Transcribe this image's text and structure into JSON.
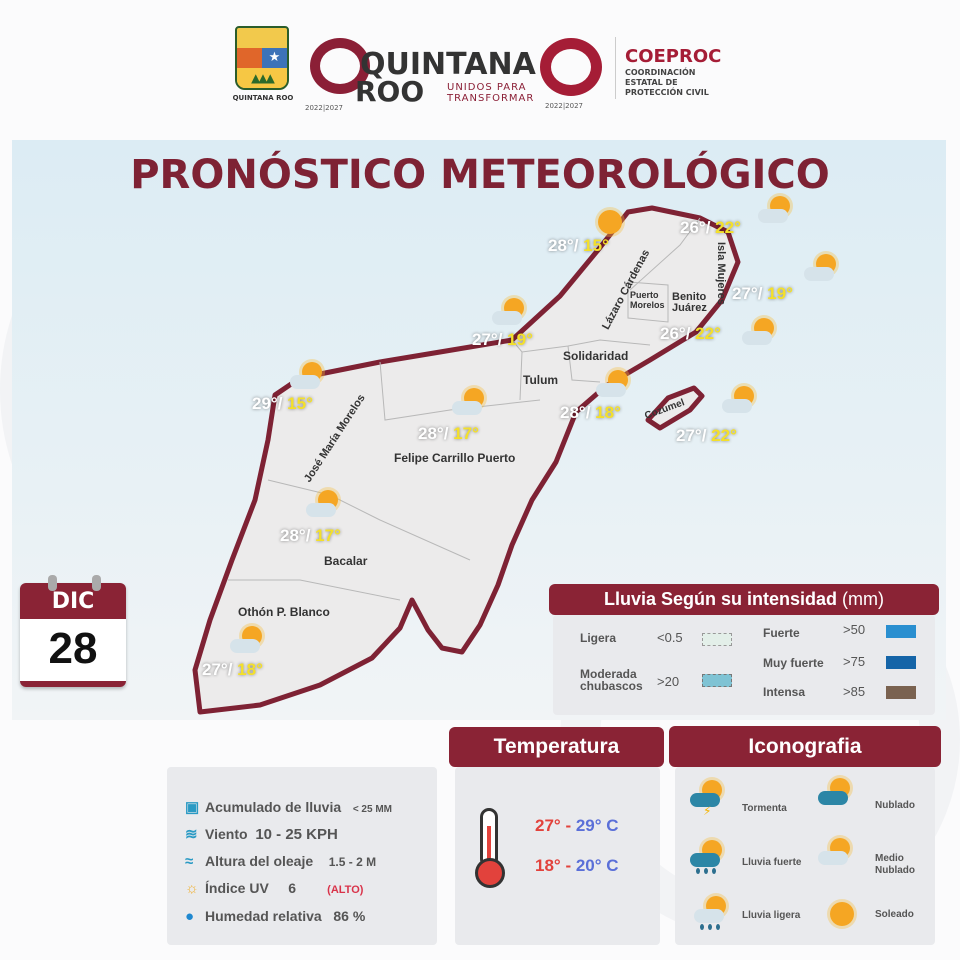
{
  "header": {
    "shield_caption": "QUINTANA ROO",
    "brand_line1": "QUINTANA",
    "brand_line2": "ROO",
    "brand_slogan1": "UNIDOS PARA",
    "brand_slogan2": "TRANSFORMAR",
    "brand_period": "2022|2027",
    "logo2_period": "2022|2027",
    "coeproc": "COEPROC",
    "coeproc_sub": "COORDINACIÓN ESTATAL DE PROTECCIÓN CIVIL"
  },
  "title": "PRONÓSTICO METEOROLÓGICO",
  "date": {
    "month": "DIC",
    "day": "28"
  },
  "map": {
    "municipalities": [
      "Lázaro Cárdenas",
      "Isla Mujeres",
      "Puerto Morelos",
      "Benito Juárez",
      "Solidaridad",
      "Tulum",
      "Cozumel",
      "José María Morelos",
      "Felipe Carrillo Puerto",
      "Bacalar",
      "Othón P. Blanco"
    ],
    "forecasts": [
      {
        "max": "28°/",
        "min": "15°",
        "icon": "soleado"
      },
      {
        "max": "26°/",
        "min": "22°",
        "icon": "medio-nublado"
      },
      {
        "max": "27°/",
        "min": "19°",
        "icon": "medio-nublado"
      },
      {
        "max": "26°/",
        "min": "22°",
        "icon": "medio-nublado"
      },
      {
        "max": "27°/",
        "min": "19°",
        "icon": "medio-nublado"
      },
      {
        "max": "29°/",
        "min": "15°",
        "icon": "medio-nublado"
      },
      {
        "max": "28°/",
        "min": "17°",
        "icon": "medio-nublado"
      },
      {
        "max": "28°/",
        "min": "18°",
        "icon": "medio-nublado"
      },
      {
        "max": "27°/",
        "min": "22°",
        "icon": "medio-nublado"
      },
      {
        "max": "28°/",
        "min": "17°",
        "icon": "medio-nublado"
      },
      {
        "max": "27°/",
        "min": "18°",
        "icon": "medio-nublado"
      }
    ],
    "colors": {
      "land": "#ecebeb",
      "coast": "#7e2234",
      "sea": "#dcecf4"
    }
  },
  "rain_legend": {
    "title": "Lluvia Según su intensidad",
    "unit": "(mm)",
    "items": [
      {
        "label": "Ligera",
        "value": "<0.5",
        "color": "#e3efe9"
      },
      {
        "label": "Moderada chubascos",
        "value": ">20",
        "color": "#7fc3d4"
      },
      {
        "label": "Fuerte",
        "value": ">50",
        "color": "#2a8fd0"
      },
      {
        "label": "Muy fuerte",
        "value": ">75",
        "color": "#1565a8"
      },
      {
        "label": "Intensa",
        "value": ">85",
        "color": "#7a6250"
      }
    ]
  },
  "conditions": [
    {
      "icon": "rain-gauge-icon",
      "label": "Acumulado de lluvia",
      "value": "< 25 MM"
    },
    {
      "icon": "wind-icon",
      "label": "Viento",
      "value": "10 - 25 KPH"
    },
    {
      "icon": "waves-icon",
      "label": "Altura del oleaje",
      "value": "1.5 - 2 M"
    },
    {
      "icon": "uv-icon",
      "label": "Índice UV",
      "value": "6",
      "note": "(ALTO)"
    },
    {
      "icon": "humidity-drop-icon",
      "label": "Humedad relativa",
      "value": "86 %"
    }
  ],
  "temperature": {
    "title": "Temperatura",
    "max_range": {
      "from": "27°",
      "sep": " - ",
      "to": "29° C"
    },
    "min_range": {
      "from": "18°",
      "sep": " - ",
      "to": "20° C"
    }
  },
  "iconography": {
    "title": "Iconografia",
    "items": [
      "Tormenta",
      "Nublado",
      "Lluvia fuerte",
      "Medio Nublado",
      "Lluvia ligera",
      "Soleado"
    ]
  },
  "accent": "#8a2335"
}
